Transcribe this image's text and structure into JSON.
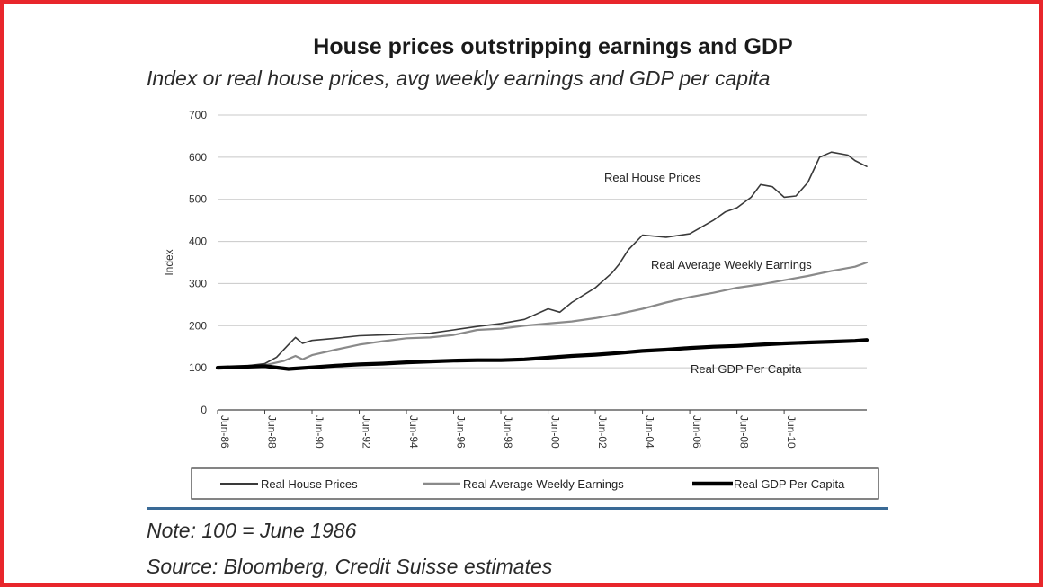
{
  "colors": {
    "frame": "#e8262b",
    "rule": "#3a6a96",
    "grid": "#c8c8c8"
  },
  "header": {
    "title": "House prices outstripping earnings and GDP",
    "subtitle": "Index or real house prices, avg weekly earnings and GDP per capita"
  },
  "footer": {
    "note": "Note: 100 = June 1986",
    "source": "Source: Bloomberg, Credit Suisse estimates"
  },
  "chart_data": {
    "type": "line",
    "ylabel": "Index",
    "ylim": [
      0,
      700
    ],
    "yticks": [
      0,
      100,
      200,
      300,
      400,
      500,
      600,
      700
    ],
    "xlim": [
      1986,
      2013.5
    ],
    "xticks": [
      {
        "x": 1986,
        "label": "Jun-86"
      },
      {
        "x": 1988,
        "label": "Jun-88"
      },
      {
        "x": 1990,
        "label": "Jun-90"
      },
      {
        "x": 1992,
        "label": "Jun-92"
      },
      {
        "x": 1994,
        "label": "Jun-94"
      },
      {
        "x": 1996,
        "label": "Jun-96"
      },
      {
        "x": 1998,
        "label": "Jun-98"
      },
      {
        "x": 2000,
        "label": "Jun-00"
      },
      {
        "x": 2002,
        "label": "Jun-02"
      },
      {
        "x": 2004,
        "label": "Jun-04"
      },
      {
        "x": 2006,
        "label": "Jun-06"
      },
      {
        "x": 2008,
        "label": "Jun-08"
      },
      {
        "x": 2010,
        "label": "Jun-10"
      }
    ],
    "grid": true,
    "legend": "bottom",
    "series": [
      {
        "name": "Real House Prices",
        "color": "#3a3a3a",
        "x": [
          1986,
          1987,
          1988,
          1988.5,
          1989,
          1989.3,
          1989.6,
          1990,
          1991,
          1992,
          1993,
          1994,
          1995,
          1996,
          1997,
          1998,
          1999,
          2000,
          2000.5,
          2001,
          2002,
          2002.7,
          2003,
          2003.4,
          2004,
          2005,
          2006,
          2007,
          2007.5,
          2008,
          2008.6,
          2009,
          2009.5,
          2010,
          2010.5,
          2011,
          2011.5,
          2012,
          2012.7,
          2013,
          2013.5
        ],
        "values": [
          100,
          103,
          110,
          125,
          155,
          172,
          158,
          165,
          170,
          176,
          178,
          180,
          182,
          190,
          198,
          205,
          215,
          240,
          232,
          255,
          290,
          325,
          345,
          380,
          415,
          410,
          418,
          450,
          470,
          480,
          505,
          535,
          530,
          505,
          508,
          540,
          600,
          612,
          605,
          592,
          578
        ]
      },
      {
        "name": "Real Average Weekly Earnings",
        "color": "#8a8a8a",
        "x": [
          1986,
          1987,
          1988,
          1988.8,
          1989.3,
          1989.6,
          1990,
          1991,
          1992,
          1993,
          1994,
          1995,
          1996,
          1997,
          1998,
          1999,
          2000,
          2001,
          2002,
          2003,
          2004,
          2005,
          2006,
          2007,
          2008,
          2009,
          2010,
          2011,
          2012,
          2013,
          2013.5
        ],
        "values": [
          100,
          102,
          106,
          116,
          128,
          120,
          130,
          143,
          155,
          163,
          170,
          172,
          178,
          190,
          193,
          200,
          205,
          210,
          218,
          228,
          240,
          255,
          268,
          278,
          290,
          298,
          308,
          318,
          330,
          340,
          350
        ]
      },
      {
        "name": "Real GDP Per Capita",
        "color": "#000000",
        "x": [
          1986,
          1987,
          1988,
          1989,
          1990,
          1991,
          1992,
          1993,
          1994,
          1995,
          1996,
          1997,
          1998,
          1999,
          2000,
          2001,
          2002,
          2003,
          2004,
          2005,
          2006,
          2007,
          2008,
          2009,
          2010,
          2011,
          2012,
          2013,
          2013.5
        ],
        "values": [
          100,
          102,
          104,
          97,
          101,
          105,
          108,
          110,
          113,
          115,
          117,
          118,
          118,
          120,
          124,
          128,
          131,
          135,
          140,
          143,
          147,
          150,
          152,
          155,
          158,
          160,
          162,
          164,
          166
        ]
      }
    ],
    "annotations": [
      {
        "text": "Real House Prices",
        "series": 0
      },
      {
        "text": "Real Average Weekly Earnings",
        "series": 1
      },
      {
        "text": "Real GDP Per Capita",
        "series": 2
      }
    ]
  }
}
